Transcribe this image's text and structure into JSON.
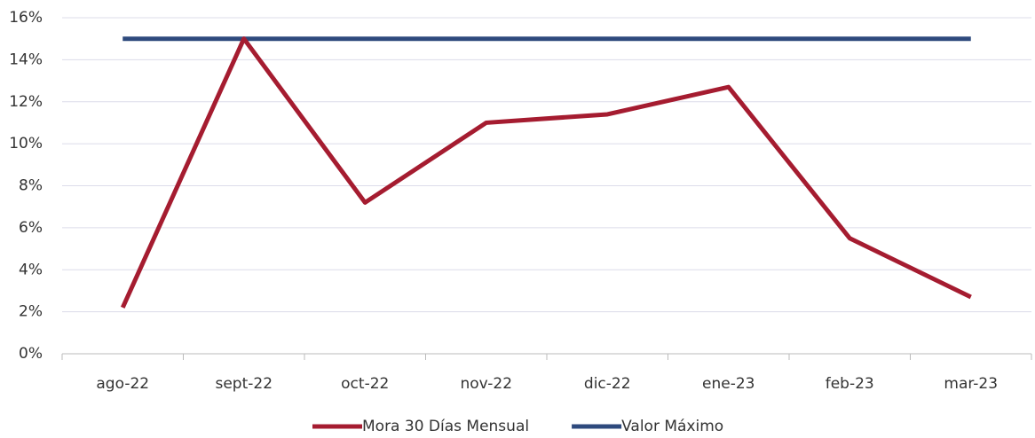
{
  "chart_data": {
    "type": "line",
    "categories": [
      "ago-22",
      "sept-22",
      "oct-22",
      "nov-22",
      "dic-22",
      "ene-23",
      "feb-23",
      "mar-23"
    ],
    "series": [
      {
        "name": "Mora 30 Días Mensual",
        "color": "#a51c30",
        "values": [
          2.2,
          15.0,
          7.2,
          11.0,
          11.4,
          12.7,
          5.5,
          2.7
        ]
      },
      {
        "name": "Valor Máximo",
        "color": "#2e4a7d",
        "values": [
          15,
          15,
          15,
          15,
          15,
          15,
          15,
          15
        ]
      }
    ],
    "ylim": [
      0,
      16
    ],
    "yticks": [
      {
        "value": 0,
        "label": "0%"
      },
      {
        "value": 2,
        "label": "2%"
      },
      {
        "value": 4,
        "label": "4%"
      },
      {
        "value": 6,
        "label": "6%"
      },
      {
        "value": 8,
        "label": "8%"
      },
      {
        "value": 10,
        "label": "10%"
      },
      {
        "value": 12,
        "label": "12%"
      },
      {
        "value": 14,
        "label": "14%"
      },
      {
        "value": 16,
        "label": "16%"
      }
    ],
    "grid": true,
    "legend": "bottom"
  }
}
